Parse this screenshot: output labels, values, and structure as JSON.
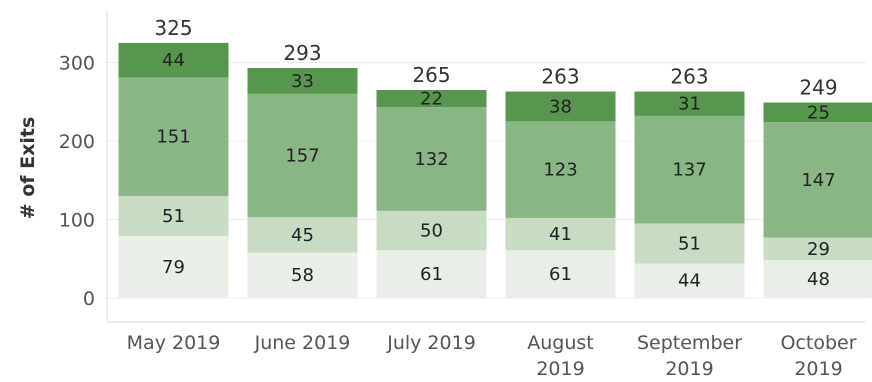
{
  "chart_data": {
    "type": "bar",
    "stacked": true,
    "ylabel": "# of Exits",
    "xlabel": "",
    "ylim": [
      0,
      360
    ],
    "yticks": [
      0,
      100,
      200,
      300
    ],
    "grid": true,
    "categories": [
      [
        "May 2019"
      ],
      [
        "June 2019"
      ],
      [
        "July 2019"
      ],
      [
        "August",
        "2019"
      ],
      [
        "September",
        "2019"
      ],
      [
        "October",
        "2019"
      ]
    ],
    "totals": [
      325,
      293,
      265,
      263,
      263,
      249
    ],
    "series": [
      {
        "color": "#e9efe6",
        "values": [
          79,
          58,
          61,
          61,
          44,
          48
        ]
      },
      {
        "color": "#c8dcc3",
        "values": [
          51,
          45,
          50,
          41,
          51,
          29
        ]
      },
      {
        "color": "#8ab685",
        "values": [
          151,
          157,
          132,
          123,
          137,
          147
        ]
      },
      {
        "color": "#58964f",
        "values": [
          44,
          33,
          22,
          38,
          31,
          25
        ]
      }
    ]
  }
}
